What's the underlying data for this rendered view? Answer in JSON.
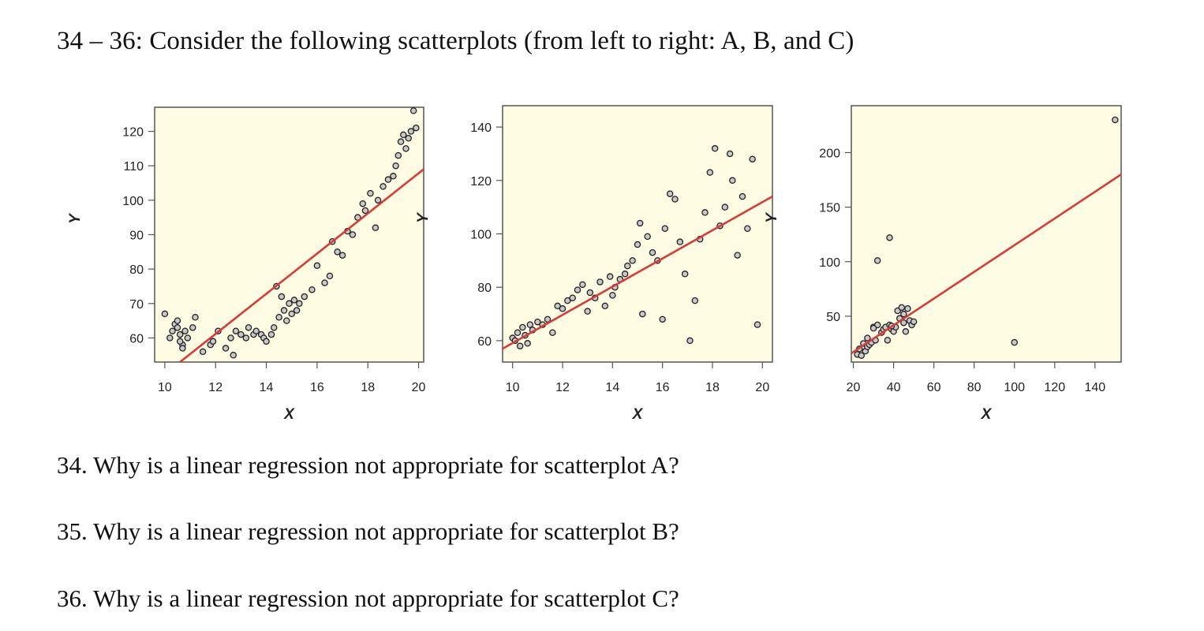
{
  "header": {
    "title": "34 – 36: Consider the following scatterplots (from left to right: A, B, and C)"
  },
  "questions": [
    "34. Why is a linear regression not appropriate for scatterplot A?",
    "35. Why is a linear regression not appropriate for scatterplot B?",
    "36. Why is a linear regression not appropriate for scatterplot C?"
  ],
  "colors": {
    "plot_background": "#fefde3",
    "frame": "#555555",
    "regression_line": "#d93a3a",
    "marker_fill": "#c9c9c9",
    "marker_stroke": "#222222"
  },
  "chart_data": [
    {
      "type": "scatter",
      "name": "A",
      "xlabel": "X",
      "ylabel": "Y",
      "xlim": [
        9.6,
        20.2
      ],
      "ylim": [
        53,
        127
      ],
      "xticks": [
        10,
        12,
        14,
        16,
        18,
        20
      ],
      "yticks": [
        60,
        70,
        80,
        90,
        100,
        110,
        120
      ],
      "regression_line": {
        "x": [
          10.6,
          20.2
        ],
        "y": [
          53,
          109
        ]
      },
      "x": [
        10.0,
        10.2,
        10.3,
        10.4,
        10.5,
        10.6,
        10.7,
        10.8,
        10.9,
        10.5,
        10.6,
        10.7,
        11.1,
        11.2,
        11.5,
        11.8,
        11.9,
        12.1,
        12.4,
        12.6,
        12.7,
        12.8,
        13.0,
        13.2,
        13.3,
        13.5,
        13.6,
        13.8,
        13.9,
        14.0,
        14.2,
        14.3,
        14.4,
        14.5,
        14.6,
        14.7,
        14.8,
        14.9,
        15.0,
        15.1,
        15.2,
        15.3,
        15.5,
        15.8,
        16.0,
        16.3,
        16.5,
        16.6,
        16.8,
        17.0,
        17.2,
        17.4,
        17.6,
        17.8,
        17.9,
        18.1,
        18.3,
        18.4,
        18.6,
        18.8,
        19.0,
        19.1,
        19.2,
        19.3,
        19.4,
        19.5,
        19.6,
        19.7,
        19.8,
        19.9
      ],
      "y": [
        67,
        60,
        62,
        64,
        63,
        61,
        58,
        62,
        60,
        65,
        59,
        57,
        63,
        66,
        56,
        58,
        59,
        62,
        57,
        60,
        55,
        62,
        61,
        60,
        63,
        61,
        62,
        61,
        60,
        59,
        61,
        63,
        75,
        66,
        72,
        68,
        65,
        70,
        67,
        71,
        68,
        70,
        72,
        74,
        81,
        76,
        78,
        88,
        85,
        84,
        91,
        90,
        95,
        99,
        97,
        102,
        92,
        100,
        104,
        106,
        107,
        110,
        113,
        117,
        119,
        115,
        118,
        120,
        126,
        121
      ]
    },
    {
      "type": "scatter",
      "name": "B",
      "xlabel": "X",
      "ylabel": "Y",
      "xlim": [
        9.6,
        20.4
      ],
      "ylim": [
        52,
        148
      ],
      "xticks": [
        10,
        12,
        14,
        16,
        18,
        20
      ],
      "yticks": [
        60,
        80,
        100,
        120,
        140
      ],
      "regression_line": {
        "x": [
          9.6,
          20.4
        ],
        "y": [
          57,
          114
        ]
      },
      "x": [
        10.0,
        10.1,
        10.2,
        10.3,
        10.4,
        10.5,
        10.6,
        10.7,
        10.8,
        11.0,
        11.2,
        11.4,
        11.6,
        11.8,
        12.0,
        12.2,
        12.4,
        12.6,
        12.8,
        13.0,
        13.1,
        13.3,
        13.5,
        13.7,
        13.9,
        14.0,
        14.1,
        14.3,
        14.5,
        14.6,
        14.8,
        15.0,
        15.1,
        15.2,
        15.4,
        15.6,
        15.8,
        16.0,
        16.1,
        16.3,
        16.5,
        16.7,
        16.9,
        17.1,
        17.3,
        17.5,
        17.7,
        17.9,
        18.1,
        18.3,
        18.5,
        18.7,
        18.8,
        19.0,
        19.2,
        19.4,
        19.6,
        19.8
      ],
      "y": [
        61,
        60,
        63,
        58,
        65,
        62,
        59,
        66,
        64,
        67,
        66,
        68,
        63,
        73,
        72,
        75,
        76,
        79,
        81,
        71,
        78,
        76,
        82,
        73,
        84,
        77,
        80,
        83,
        85,
        88,
        90,
        96,
        104,
        70,
        99,
        93,
        90,
        68,
        102,
        115,
        113,
        97,
        85,
        60,
        75,
        98,
        108,
        123,
        132,
        103,
        110,
        130,
        120,
        92,
        114,
        102,
        128,
        66
      ]
    },
    {
      "type": "scatter",
      "name": "C",
      "xlabel": "X",
      "ylabel": "Y",
      "xlim": [
        19,
        153
      ],
      "ylim": [
        8,
        243
      ],
      "xticks": [
        20,
        40,
        60,
        80,
        100,
        120,
        140
      ],
      "yticks": [
        50,
        100,
        150,
        200
      ],
      "regression_line": {
        "x": [
          19,
          153
        ],
        "y": [
          16,
          180
        ]
      },
      "x": [
        22,
        23,
        24,
        25,
        26,
        27,
        28,
        29,
        30,
        31,
        32,
        34,
        35,
        36,
        37,
        38,
        39,
        40,
        41,
        42,
        43,
        44,
        45,
        45,
        46,
        47,
        48,
        49,
        50,
        27,
        32,
        38,
        30,
        39,
        100,
        150
      ],
      "y": [
        15,
        20,
        14,
        25,
        18,
        22,
        24,
        26,
        40,
        28,
        42,
        35,
        38,
        40,
        28,
        42,
        38,
        36,
        40,
        55,
        48,
        58,
        52,
        44,
        36,
        57,
        46,
        42,
        45,
        30,
        101,
        122,
        39,
        41,
        26,
        230
      ]
    }
  ]
}
